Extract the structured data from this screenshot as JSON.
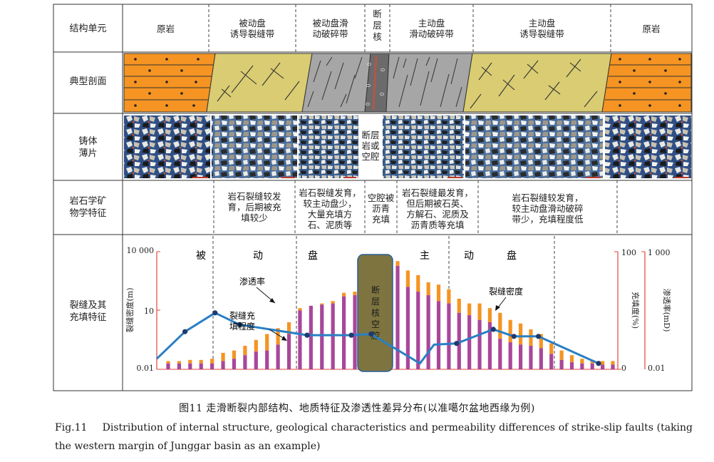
{
  "figure": {
    "rows": {
      "structure_unit": "结构单元",
      "typical_profile": "典型剖面",
      "thin_section": "铸体\n薄片",
      "mineralogy": "岩石学矿\n物学特征",
      "fracture_filling": "裂缝及其\n充填特征"
    },
    "zones": [
      "原岩",
      "被动盘\n诱导裂缝带",
      "被动盘滑\n动破碎带",
      "断\n层\n核",
      "主动盘\n滑动破碎带",
      "主动盘\n诱导裂缝带",
      "原岩"
    ],
    "core_cavity": "断层\n岩或\n空腔",
    "mineral_notes": [
      "岩石裂缝较发\n育，后期被充\n填较少",
      "岩石裂缝发育，\n较主动盘少，\n大量充填方\n石、泥质等",
      "空腔被\n沥青\n充填",
      "岩石裂缝最发育，\n但后期被石英、\n方解石、泥质及\n沥青质等充填",
      "岩石裂缝较发育，\n较主动盘滑动破碎\n带少，充填程度低"
    ]
  },
  "chart_data": {
    "type": "bar+line",
    "region_labels": [
      "被",
      "动",
      "盘",
      "主",
      "动",
      "盘"
    ],
    "core_label": "断\n层\n核\n空\n腔",
    "left_axis": {
      "label": "裂缝密度(m)",
      "ticks": [
        "10 000",
        "10",
        "0.01"
      ],
      "scale": "log",
      "range": [
        0.01,
        10000
      ]
    },
    "right_axis_1": {
      "label": "充填度(%)",
      "ticks": [
        "100",
        "0"
      ],
      "range": [
        0,
        100
      ]
    },
    "right_axis_2": {
      "label": "渗透率(mD)",
      "ticks": [
        "1 000",
        "0.01"
      ],
      "scale": "log",
      "range": [
        0.01,
        1000
      ]
    },
    "annotations": [
      "渗透率",
      "裂缝充\n填程度",
      "裂缝密度"
    ],
    "series": [
      {
        "name": "渗透率",
        "color": "#2a7fc4",
        "points": [
          [
            0,
            0.09
          ],
          [
            0.3,
            0.32
          ],
          [
            0.62,
            0.48
          ],
          [
            0.88,
            0.38
          ],
          [
            1.6,
            0.29
          ],
          [
            2.07,
            0.29
          ],
          [
            2.28,
            0.3
          ],
          [
            2.8,
            0.05
          ],
          [
            2.95,
            0.21
          ],
          [
            3.19,
            0.22
          ],
          [
            3.58,
            0.34
          ],
          [
            3.8,
            0.28
          ],
          [
            4.06,
            0.28
          ],
          [
            4.7,
            0.05
          ]
        ],
        "markers": [
          1,
          2,
          3,
          4,
          5,
          6,
          9,
          10,
          11,
          12,
          13
        ]
      }
    ],
    "bars": {
      "fracture_density_color": "#f59422",
      "filling_color": "#a8479a",
      "groups": [
        {
          "total": 0.07,
          "fill": 0.05
        },
        {
          "total": 0.07,
          "fill": 0.05
        },
        {
          "total": 0.08,
          "fill": 0.05
        },
        {
          "total": 0.08,
          "fill": 0.05
        },
        {
          "total": 0.09,
          "fill": 0.05
        },
        {
          "total": 0.14,
          "fill": 0.07
        },
        {
          "total": 0.16,
          "fill": 0.09
        },
        {
          "total": 0.2,
          "fill": 0.12
        },
        {
          "total": 0.25,
          "fill": 0.15
        },
        {
          "total": 0.3,
          "fill": 0.16
        },
        {
          "total": 0.35,
          "fill": 0.21
        },
        {
          "total": 0.4,
          "fill": 0.3
        },
        {
          "total": 0.52,
          "fill": 0.5
        },
        {
          "total": 0.54,
          "fill": 0.54
        },
        {
          "total": 0.56,
          "fill": 0.55
        },
        {
          "total": 0.58,
          "fill": 0.56
        },
        {
          "total": 0.65,
          "fill": 0.62
        },
        {
          "total": 0.66,
          "fill": 0.63
        },
        {
          "total": 0.92,
          "fill": 0.88
        },
        {
          "total": 0.84,
          "fill": 0.7
        },
        {
          "total": 0.8,
          "fill": 0.66
        },
        {
          "total": 0.74,
          "fill": 0.63
        },
        {
          "total": 0.72,
          "fill": 0.58
        },
        {
          "total": 0.68,
          "fill": 0.56
        },
        {
          "total": 0.6,
          "fill": 0.48
        },
        {
          "total": 0.56,
          "fill": 0.46
        },
        {
          "total": 0.56,
          "fill": 0.42
        },
        {
          "total": 0.52,
          "fill": 0.4
        },
        {
          "total": 0.48,
          "fill": 0.26
        },
        {
          "total": 0.42,
          "fill": 0.23
        },
        {
          "total": 0.39,
          "fill": 0.21
        },
        {
          "total": 0.34,
          "fill": 0.2
        },
        {
          "total": 0.3,
          "fill": 0.18
        },
        {
          "total": 0.22,
          "fill": 0.13
        },
        {
          "total": 0.16,
          "fill": 0.08
        },
        {
          "total": 0.12,
          "fill": 0.06
        },
        {
          "total": 0.09,
          "fill": 0.05
        },
        {
          "total": 0.08,
          "fill": 0.05
        },
        {
          "total": 0.07,
          "fill": 0.04
        },
        {
          "total": 0.07,
          "fill": 0.04
        }
      ]
    }
  },
  "caption": {
    "cn": "图11   走滑断裂内部结构、地质特征及渗透性差异分布(以准噶尔盆地西缘为例)",
    "en_label": "Fig.11",
    "en_text": "Distribution of internal structure, geological characteristics and permeability differences of strike-slip faults (taking the western margin of Junggar basin as an example)"
  },
  "colors": {
    "orange_rock": "#f59422",
    "yellow_rock": "#d9cc72",
    "gray_rock": "#a6a6a6",
    "core_rock": "#6b6b6b",
    "core_cavity": "#7d7440",
    "permeability_line": "#2a7fc4",
    "axis_red": "#e0453a"
  }
}
